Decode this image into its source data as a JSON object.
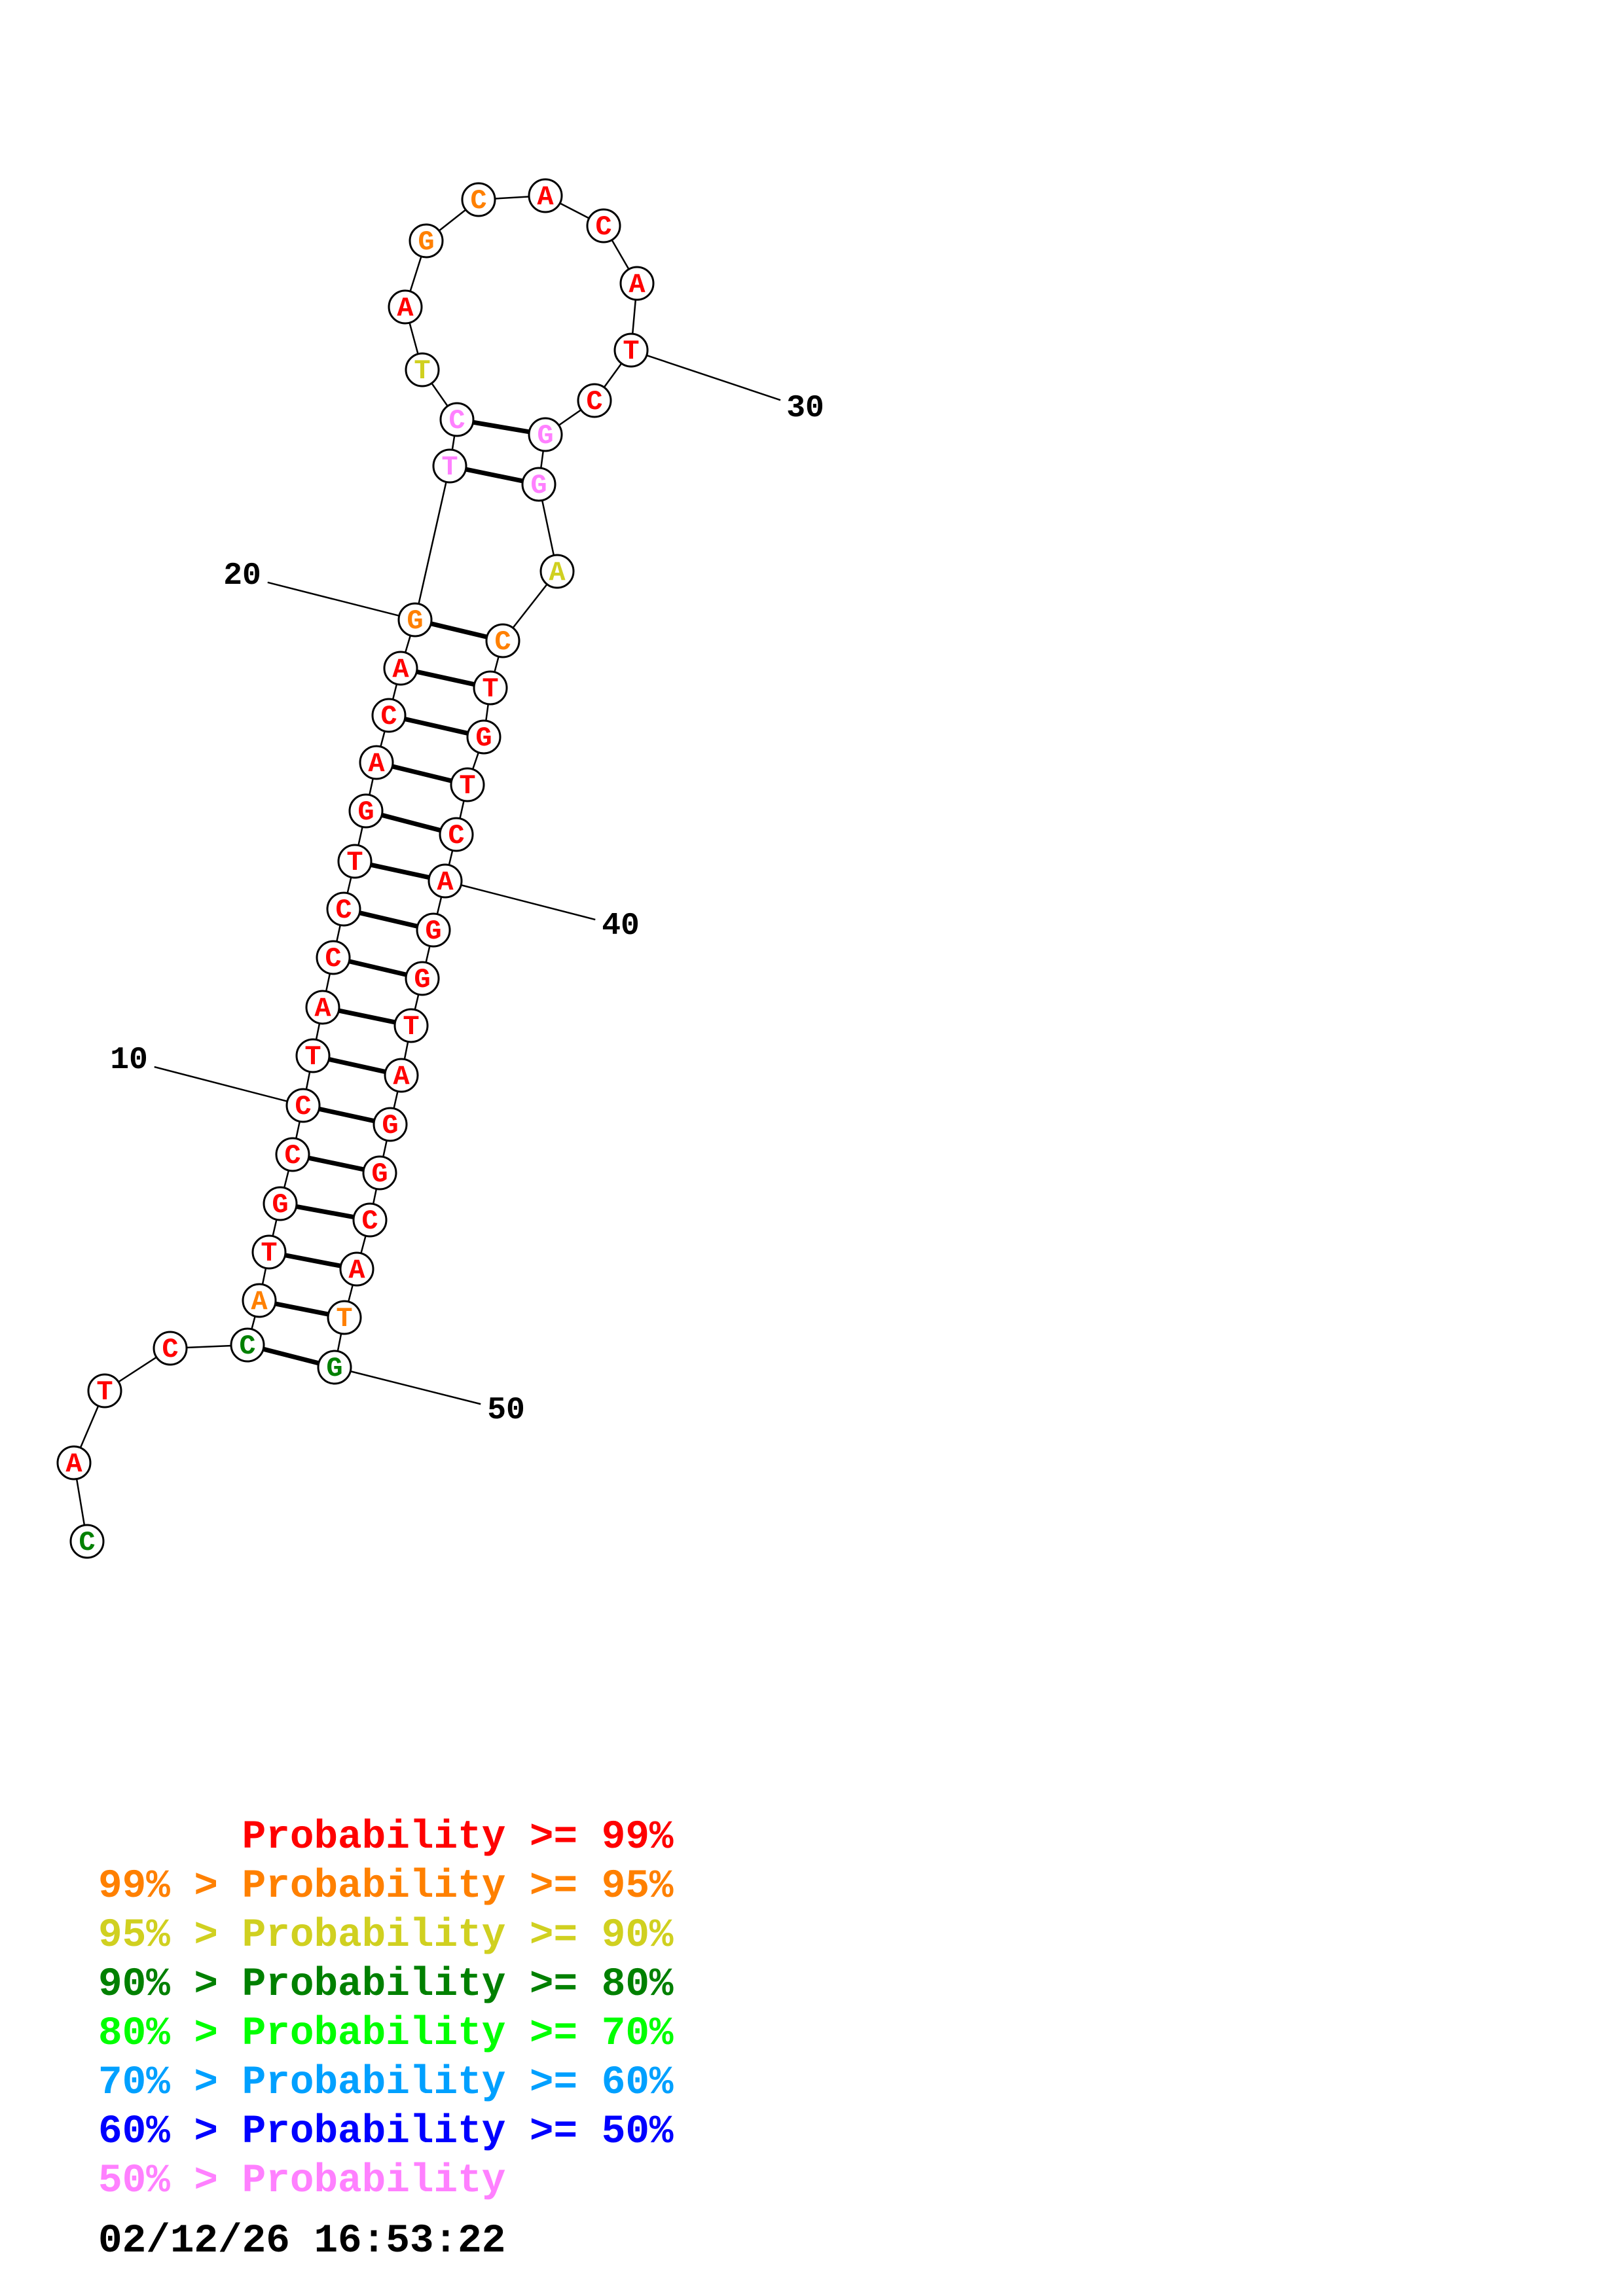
{
  "sequence": [
    "C",
    "A",
    "T",
    "C",
    "C",
    "A",
    "T",
    "G",
    "C",
    "C",
    "T",
    "A",
    "C",
    "C",
    "T",
    "G",
    "A",
    "C",
    "A",
    "G",
    "T",
    "C",
    "T",
    "A",
    "G",
    "C",
    "A",
    "C",
    "A",
    "T",
    "C",
    "G",
    "G",
    "A",
    "C",
    "T",
    "G",
    "T",
    "C",
    "A",
    "G",
    "G",
    "T",
    "A",
    "G",
    "G",
    "C",
    "A",
    "T",
    "G"
  ],
  "probability_class": [
    3,
    0,
    0,
    0,
    3,
    1,
    0,
    0,
    0,
    0,
    0,
    0,
    0,
    0,
    0,
    0,
    0,
    0,
    0,
    1,
    7,
    7,
    2,
    0,
    1,
    1,
    0,
    0,
    0,
    0,
    0,
    7,
    7,
    2,
    1,
    0,
    0,
    0,
    0,
    0,
    0,
    0,
    0,
    0,
    0,
    0,
    0,
    0,
    1,
    3
  ],
  "pairs": [
    [
      5,
      50
    ],
    [
      6,
      49
    ],
    [
      7,
      48
    ],
    [
      8,
      47
    ],
    [
      9,
      46
    ],
    [
      10,
      45
    ],
    [
      11,
      44
    ],
    [
      12,
      43
    ],
    [
      13,
      42
    ],
    [
      14,
      41
    ],
    [
      15,
      40
    ],
    [
      16,
      39
    ],
    [
      17,
      38
    ],
    [
      18,
      37
    ],
    [
      19,
      36
    ],
    [
      20,
      35
    ],
    [
      21,
      33
    ],
    [
      22,
      32
    ]
  ],
  "number_labels": [
    {
      "text": "10",
      "base": 10
    },
    {
      "text": "20",
      "base": 20
    },
    {
      "text": "30",
      "base": 30
    },
    {
      "text": "40",
      "base": 40
    },
    {
      "text": "50",
      "base": 50
    }
  ],
  "class_colors": [
    "#ff0000",
    "#ff8000",
    "#d0d020",
    "#008000",
    "#00ff00",
    "#00a0ff",
    "#0000ff",
    "#ff80ff"
  ],
  "legend": [
    {
      "text": "      Probability >= 99%",
      "color": "#ff0000"
    },
    {
      "text": "99% > Probability >= 95%",
      "color": "#ff8000"
    },
    {
      "text": "95% > Probability >= 90%",
      "color": "#d0d020"
    },
    {
      "text": "90% > Probability >= 80%",
      "color": "#008000"
    },
    {
      "text": "80% > Probability >= 70%",
      "color": "#00ff00"
    },
    {
      "text": "70% > Probability >= 60%",
      "color": "#00a0ff"
    },
    {
      "text": "60% > Probability >= 50%",
      "color": "#0000ff"
    },
    {
      "text": "50% > Probability",
      "color": "#ff80ff"
    }
  ],
  "timestamp": "02/12/26 16:53:22"
}
